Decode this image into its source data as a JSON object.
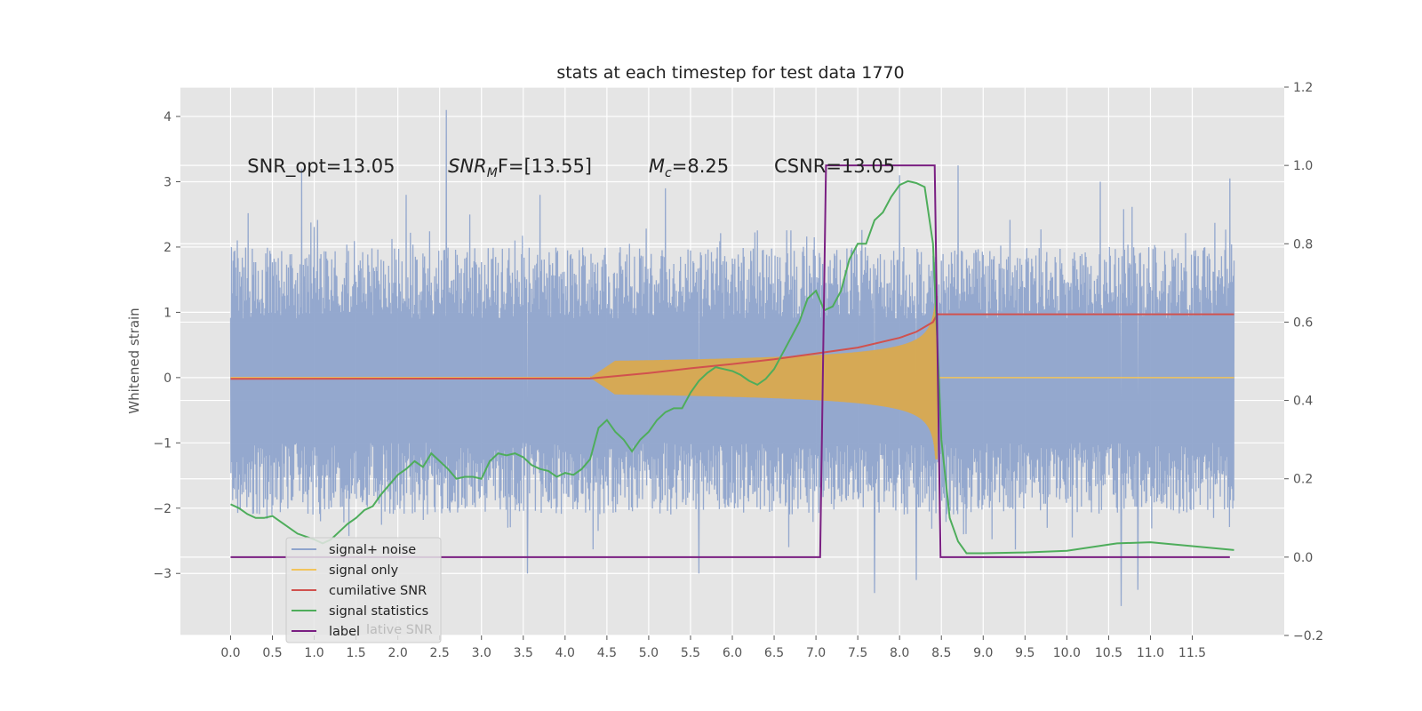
{
  "chart_data": {
    "type": "line",
    "title": "stats at each timestep for test data 1770",
    "xlabel": "",
    "ylabel": "Whitened strain",
    "xlim": [
      -0.6,
      12.6
    ],
    "ylim": [
      -3.95,
      4.45
    ],
    "y2lim": [
      -0.2,
      1.2
    ],
    "x_ticks": [
      "0.0",
      "0.5",
      "1.0",
      "1.5",
      "2.0",
      "2.5",
      "3.0",
      "3.5",
      "4.0",
      "4.5",
      "5.0",
      "5.5",
      "6.0",
      "6.5",
      "7.0",
      "7.5",
      "8.0",
      "8.5",
      "9.0",
      "9.5",
      "10.0",
      "10.5",
      "11.0",
      "11.5"
    ],
    "y_ticks": [
      "−3",
      "−2",
      "−1",
      "0",
      "1",
      "2",
      "3",
      "4"
    ],
    "y2_ticks": [
      "−0.2",
      "0.0",
      "0.2",
      "0.4",
      "0.6",
      "0.8",
      "1.0",
      "1.2"
    ],
    "grid": true,
    "legend_position": "lower-left",
    "annotations": [
      {
        "text": "SNR_opt=13.05",
        "x": 0.2,
        "y": 3.25
      },
      {
        "text": "SNR",
        "sub": "M",
        "suffix": "F=[13.55]",
        "x": 2.6,
        "y": 3.25
      },
      {
        "text": "M",
        "sub": "c",
        "suffix": "=8.25",
        "x": 5.0,
        "y": 3.25
      },
      {
        "text": "CSNR=13.05",
        "x": 6.5,
        "y": 3.25
      }
    ],
    "ghost_legend_text": "lative SNR",
    "series": [
      {
        "name": "signal+ noise",
        "color": "#8fa4cc",
        "kind": "noise",
        "x_range": [
          0,
          12
        ],
        "envelope": {
          "upper_typical": 2.0,
          "lower_typical": -2.1
        },
        "peaks": [
          {
            "x": 0.85,
            "y": 3.2
          },
          {
            "x": 2.58,
            "y": 4.1
          },
          {
            "x": 2.1,
            "y": 2.8
          },
          {
            "x": 3.7,
            "y": 2.8
          },
          {
            "x": 5.2,
            "y": 2.9
          },
          {
            "x": 8.0,
            "y": 3.1
          },
          {
            "x": 8.7,
            "y": 3.25
          },
          {
            "x": 11.95,
            "y": 3.05
          },
          {
            "x": 10.4,
            "y": 3.0
          },
          {
            "x": 3.55,
            "y": -3.0
          },
          {
            "x": 5.6,
            "y": -3.0
          },
          {
            "x": 7.7,
            "y": -3.3
          },
          {
            "x": 10.65,
            "y": -3.5
          },
          {
            "x": 10.85,
            "y": -3.25
          },
          {
            "x": 8.2,
            "y": -3.1
          }
        ]
      },
      {
        "name": "signal only",
        "color": "#f2c45c",
        "kind": "chirp",
        "start": 4.3,
        "end": 8.45,
        "max_amplitude": 1.25
      },
      {
        "name": "cumilative SNR",
        "color": "#d1514e",
        "axis": "right",
        "x": [
          0,
          4.3,
          5.0,
          5.5,
          6.0,
          6.5,
          7.0,
          7.5,
          8.0,
          8.2,
          8.4,
          8.45,
          12.0
        ],
        "y": [
          0.455,
          0.456,
          0.47,
          0.482,
          0.493,
          0.505,
          0.52,
          0.535,
          0.56,
          0.575,
          0.6,
          0.62,
          0.62
        ]
      },
      {
        "name": "signal statistics",
        "color": "#4ead5b",
        "axis": "right",
        "x": [
          0,
          0.1,
          0.2,
          0.3,
          0.4,
          0.5,
          0.6,
          0.8,
          1.0,
          1.1,
          1.2,
          1.3,
          1.4,
          1.5,
          1.6,
          1.7,
          1.8,
          1.9,
          2.0,
          2.1,
          2.2,
          2.3,
          2.4,
          2.5,
          2.6,
          2.7,
          2.8,
          2.9,
          3.0,
          3.1,
          3.2,
          3.3,
          3.4,
          3.5,
          3.6,
          3.7,
          3.8,
          3.9,
          4.0,
          4.1,
          4.2,
          4.3,
          4.4,
          4.5,
          4.6,
          4.7,
          4.8,
          4.9,
          5.0,
          5.1,
          5.2,
          5.3,
          5.4,
          5.5,
          5.6,
          5.7,
          5.8,
          5.9,
          6.0,
          6.1,
          6.2,
          6.3,
          6.4,
          6.5,
          6.6,
          6.7,
          6.8,
          6.9,
          7.0,
          7.1,
          7.2,
          7.3,
          7.4,
          7.5,
          7.6,
          7.7,
          7.8,
          7.9,
          8.0,
          8.1,
          8.2,
          8.3,
          8.4,
          8.45,
          8.5,
          8.6,
          8.7,
          8.8,
          9.0,
          9.5,
          10.0,
          10.5,
          10.6,
          11.0,
          11.5,
          12.0
        ],
        "y": [
          0.135,
          0.125,
          0.11,
          0.1,
          0.1,
          0.105,
          0.09,
          0.06,
          0.045,
          0.035,
          0.045,
          0.065,
          0.085,
          0.1,
          0.12,
          0.13,
          0.16,
          0.185,
          0.21,
          0.225,
          0.245,
          0.23,
          0.265,
          0.245,
          0.225,
          0.2,
          0.205,
          0.205,
          0.2,
          0.245,
          0.265,
          0.26,
          0.265,
          0.255,
          0.235,
          0.225,
          0.22,
          0.205,
          0.215,
          0.21,
          0.225,
          0.25,
          0.33,
          0.35,
          0.32,
          0.3,
          0.27,
          0.3,
          0.32,
          0.35,
          0.37,
          0.38,
          0.38,
          0.42,
          0.45,
          0.47,
          0.485,
          0.48,
          0.475,
          0.465,
          0.45,
          0.44,
          0.455,
          0.48,
          0.52,
          0.56,
          0.6,
          0.66,
          0.68,
          0.63,
          0.64,
          0.68,
          0.76,
          0.8,
          0.8,
          0.86,
          0.88,
          0.92,
          0.95,
          0.96,
          0.955,
          0.945,
          0.8,
          0.56,
          0.3,
          0.1,
          0.04,
          0.01,
          0.01,
          0.012,
          0.016,
          0.032,
          0.035,
          0.038,
          0.028,
          0.018
        ]
      },
      {
        "name": "label",
        "color": "#7a1f82",
        "axis": "right",
        "x": [
          0,
          7.05,
          7.12,
          8.42,
          8.49,
          11.95
        ],
        "y": [
          0.0,
          0.0,
          1.0,
          1.0,
          0.0,
          0.0
        ]
      }
    ]
  }
}
